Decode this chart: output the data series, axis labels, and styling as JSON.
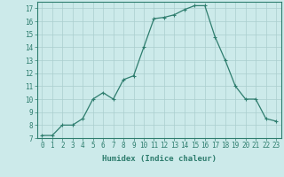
{
  "x": [
    0,
    1,
    2,
    3,
    4,
    5,
    6,
    7,
    8,
    9,
    10,
    11,
    12,
    13,
    14,
    15,
    16,
    17,
    18,
    19,
    20,
    21,
    22,
    23
  ],
  "y": [
    7.2,
    7.2,
    8.0,
    8.0,
    8.5,
    10.0,
    10.5,
    10.0,
    11.5,
    11.8,
    14.0,
    16.2,
    16.3,
    16.5,
    16.9,
    17.2,
    17.2,
    14.8,
    13.0,
    11.0,
    10.0,
    10.0,
    8.5,
    8.3
  ],
  "xlabel": "Humidex (Indice chaleur)",
  "xlim": [
    -0.5,
    23.5
  ],
  "ylim": [
    7,
    17.5
  ],
  "yticks": [
    7,
    8,
    9,
    10,
    11,
    12,
    13,
    14,
    15,
    16,
    17
  ],
  "xticks": [
    0,
    1,
    2,
    3,
    4,
    5,
    6,
    7,
    8,
    9,
    10,
    11,
    12,
    13,
    14,
    15,
    16,
    17,
    18,
    19,
    20,
    21,
    22,
    23
  ],
  "line_color": "#2e7d6e",
  "marker_color": "#2e7d6e",
  "bg_color": "#cceaea",
  "grid_color": "#aacece",
  "tick_label_fontsize": 5.5,
  "xlabel_fontsize": 6.5
}
